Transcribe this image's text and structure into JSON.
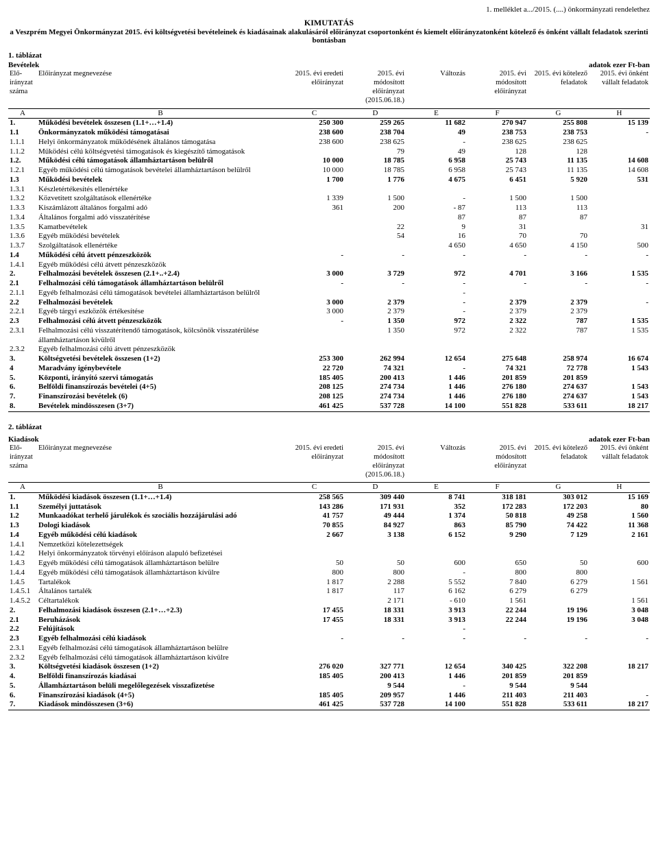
{
  "header": {
    "top_right": "1. melléklet a.../2015. (....) önkormányzati rendelethez",
    "title": "KIMUTATÁS",
    "subtitle": "a Veszprém Megyei Önkormányzat 2015. évi költségvetési bevételeinek és kiadásainak alakulásáról előirányzat csoportonként és kiemelt előirányzatonként kötelező és önként vállalt feladatok szerinti bontásban"
  },
  "table1": {
    "label": "1. táblázat",
    "section_left": "Bevételek",
    "section_right": "adatok ezer Ft-ban",
    "columns": {
      "a": "Elő-irányzat száma",
      "b": "Előirányzat megnevezése",
      "c": "2015. évi eredeti előirányzat",
      "d": "2015. évi módosított előirányzat (2015.06.18.)",
      "e": "Változás",
      "f": "2015. évi módosított előirányzat",
      "g": "2015. évi kötelező feladatok",
      "h": "2015. évi önként vállalt feladatok"
    },
    "letters": [
      "A",
      "B",
      "C",
      "D",
      "E",
      "F",
      "G",
      "H"
    ],
    "rows": [
      {
        "a": "1.",
        "b": "Működési bevételek összesen (1.1+…+1.4)",
        "c": "250 300",
        "d": "259 265",
        "e": "11 682",
        "f": "270 947",
        "g": "255 808",
        "h": "15 139",
        "bold": true
      },
      {
        "a": "1.1",
        "b": "Önkormányzatok működési támogatásai",
        "c": "238 600",
        "d": "238 704",
        "e": "49",
        "f": "238 753",
        "g": "238 753",
        "h": "-",
        "bold": true
      },
      {
        "a": "1.1.1",
        "b": "Helyi önkormányzatok működésének általános támogatása",
        "c": "238 600",
        "d": "238 625",
        "e": "-",
        "f": "238 625",
        "g": "238 625",
        "h": ""
      },
      {
        "a": "1.1.2",
        "b": "Működési célú költségvetési támogatások és kiegészítő támogatások",
        "c": "",
        "d": "79",
        "e": "49",
        "f": "128",
        "g": "128",
        "h": ""
      },
      {
        "a": "1.2.",
        "b": "Működési célú támogatások államháztartáson belülről",
        "c": "10 000",
        "d": "18 785",
        "e": "6 958",
        "f": "25 743",
        "g": "11 135",
        "h": "14 608",
        "bold": true
      },
      {
        "a": "1.2.1",
        "b": "Egyéb működési célú támogatások bevételei államháztartáson belülről",
        "c": "10 000",
        "d": "18 785",
        "e": "6 958",
        "f": "25 743",
        "g": "11 135",
        "h": "14 608"
      },
      {
        "a": "1.3",
        "b": "Működési bevételek",
        "c": "1 700",
        "d": "1 776",
        "e": "4 675",
        "f": "6 451",
        "g": "5 920",
        "h": "531",
        "bold": true
      },
      {
        "a": "1.3.1",
        "b": "Készletértékesítés ellenértéke",
        "c": "",
        "d": "",
        "e": "",
        "f": "",
        "g": "",
        "h": ""
      },
      {
        "a": "1.3.2",
        "b": "Közvetített szolgáltatások ellenértéke",
        "c": "1 339",
        "d": "1 500",
        "e": "-",
        "f": "1 500",
        "g": "1 500",
        "h": ""
      },
      {
        "a": "1.3.3",
        "b": "Kiszámlázott általános forgalmi adó",
        "c": "361",
        "d": "200",
        "e": "-          87",
        "f": "113",
        "g": "113",
        "h": ""
      },
      {
        "a": "1.3.4",
        "b": "Általános forgalmi adó visszatérítése",
        "c": "",
        "d": "",
        "e": "87",
        "f": "87",
        "g": "87",
        "h": ""
      },
      {
        "a": "1.3.5",
        "b": "Kamatbevételek",
        "c": "",
        "d": "22",
        "e": "9",
        "f": "31",
        "g": "",
        "h": "31"
      },
      {
        "a": "1.3.6",
        "b": "Egyéb működési bevételek",
        "c": "",
        "d": "54",
        "e": "16",
        "f": "70",
        "g": "70",
        "h": ""
      },
      {
        "a": "1.3.7",
        "b": "Szolgáltatások ellenértéke",
        "c": "",
        "d": "",
        "e": "4 650",
        "f": "4 650",
        "g": "4 150",
        "h": "500"
      },
      {
        "a": "1.4",
        "b": "Működési célú átvett pénzeszközök",
        "c": "-",
        "d": "-",
        "e": "-",
        "f": "-",
        "g": "-",
        "h": "-",
        "bold": true
      },
      {
        "a": "1.4.1",
        "b": "Egyéb működési célú átvett pénzeszközök",
        "c": "",
        "d": "",
        "e": "",
        "f": "",
        "g": "",
        "h": ""
      },
      {
        "a": "2.",
        "b": "Felhalmozási bevételek összesen (2.1+..+2.4)",
        "c": "3 000",
        "d": "3 729",
        "e": "972",
        "f": "4 701",
        "g": "3 166",
        "h": "1 535",
        "bold": true
      },
      {
        "a": "2.1",
        "b": "Felhalmozási célú támogatások államháztartáson belülről",
        "c": "-",
        "d": "-",
        "e": "-",
        "f": "-",
        "g": "-",
        "h": "-",
        "bold": true
      },
      {
        "a": "2.1.1",
        "b": "Egyéb felhalmozási célú támogatások bevételei államháztartáson belülről",
        "c": "",
        "d": "",
        "e": "-",
        "f": "",
        "g": "",
        "h": ""
      },
      {
        "a": "2.2",
        "b": "Felhalmozási bevételek",
        "c": "3 000",
        "d": "2 379",
        "e": "-",
        "f": "2 379",
        "g": "2 379",
        "h": "-",
        "bold": true
      },
      {
        "a": "2.2.1",
        "b": "Egyéb tárgyi eszközök értékesítése",
        "c": "3 000",
        "d": "2 379",
        "e": "-",
        "f": "2 379",
        "g": "2 379",
        "h": ""
      },
      {
        "a": "2.3",
        "b": "Felhalmozási célú átvett pénzeszközök",
        "c": "-",
        "d": "1 350",
        "e": "972",
        "f": "2 322",
        "g": "787",
        "h": "1 535",
        "bold": true
      },
      {
        "a": "2.3.1",
        "b": "Felhalmozási célú visszatérítendő támogatások, kölcsönök visszatérülése államháztartáson kívülről",
        "c": "",
        "d": "1 350",
        "e": "972",
        "f": "2 322",
        "g": "787",
        "h": "1 535"
      },
      {
        "a": "2.3.2",
        "b": "Egyéb felhalmozási célú átvett pénzeszközök",
        "c": "",
        "d": "",
        "e": "",
        "f": "",
        "g": "",
        "h": ""
      },
      {
        "a": "3.",
        "b": "Költségvetési bevételek összesen (1+2)",
        "c": "253 300",
        "d": "262 994",
        "e": "12 654",
        "f": "275 648",
        "g": "258 974",
        "h": "16 674",
        "bold": true
      },
      {
        "a": "4",
        "b": "Maradvány igénybevétele",
        "c": "22 720",
        "d": "74 321",
        "e": "-",
        "f": "74 321",
        "g": "72 778",
        "h": "1 543",
        "bold": true
      },
      {
        "a": "5.",
        "b": "Központi, irányító szervi támogatás",
        "c": "185 405",
        "d": "200 413",
        "e": "1 446",
        "f": "201 859",
        "g": "201 859",
        "h": "",
        "bold": true
      },
      {
        "a": "6.",
        "b": "Belföldi finanszírozás bevételei (4+5)",
        "c": "208 125",
        "d": "274 734",
        "e": "1 446",
        "f": "276 180",
        "g": "274 637",
        "h": "1 543",
        "bold": true
      },
      {
        "a": "7.",
        "b": "Finanszírozási bevételek (6)",
        "c": "208 125",
        "d": "274 734",
        "e": "1 446",
        "f": "276 180",
        "g": "274 637",
        "h": "1 543",
        "bold": true
      },
      {
        "a": "8.",
        "b": "Bevételek mindösszesen (3+7)",
        "c": "461 425",
        "d": "537 728",
        "e": "14 100",
        "f": "551 828",
        "g": "533 611",
        "h": "18 217",
        "bold": true,
        "last": true
      }
    ]
  },
  "table2": {
    "label": "2. táblázat",
    "section_left": "Kiadások",
    "section_right": "adatok ezer Ft-ban",
    "columns": {
      "a": "Elő-irányzat száma",
      "b": "Előirányzat megnevezése",
      "c": "2015. évi eredeti előirányzat",
      "d": "2015. évi módosított előirányzat (2015.06.18.)",
      "e": "Változás",
      "f": "2015. évi módosított előirányzat",
      "g": "2015. évi kötelező feladatok",
      "h": "2015. évi önként vállalt feladatok"
    },
    "letters": [
      "A",
      "B",
      "C",
      "D",
      "E",
      "F",
      "G",
      "H"
    ],
    "rows": [
      {
        "a": "1.",
        "b": "Működési kiadások összesen (1.1+…+1.4)",
        "c": "258 565",
        "d": "309 440",
        "e": "8 741",
        "f": "318 181",
        "g": "303 012",
        "h": "15 169",
        "bold": true
      },
      {
        "a": "1.1",
        "b": "Személyi juttatások",
        "c": "143 286",
        "d": "171 931",
        "e": "352",
        "f": "172 283",
        "g": "172 203",
        "h": "80",
        "bold": true
      },
      {
        "a": "1.2",
        "b": "Munkaadókat terhelő járulékok és szociális hozzájárulási adó",
        "c": "41 757",
        "d": "49 444",
        "e": "1 374",
        "f": "50 818",
        "g": "49 258",
        "h": "1 560",
        "bold": true
      },
      {
        "a": "1.3",
        "b": "Dologi kiadások",
        "c": "70 855",
        "d": "84 927",
        "e": "863",
        "f": "85 790",
        "g": "74 422",
        "h": "11 368",
        "bold": true
      },
      {
        "a": "1.4",
        "b": "Egyéb működési célú kiadások",
        "c": "2 667",
        "d": "3 138",
        "e": "6 152",
        "f": "9 290",
        "g": "7 129",
        "h": "2 161",
        "bold": true
      },
      {
        "a": "1.4.1",
        "b": "Nemzetközi kötelezettségek",
        "c": "",
        "d": "",
        "e": "",
        "f": "",
        "g": "",
        "h": ""
      },
      {
        "a": "1.4.2",
        "b": "Helyi önkormányzatok törvényi előíráson alapuló befizetései",
        "c": "",
        "d": "",
        "e": "",
        "f": "",
        "g": "",
        "h": ""
      },
      {
        "a": "1.4.3",
        "b": "Egyéb működési célú támogatások államháztartáson belülre",
        "c": "50",
        "d": "50",
        "e": "600",
        "f": "650",
        "g": "50",
        "h": "600"
      },
      {
        "a": "1.4.4",
        "b": "Egyéb működési célú támogatások államháztartáson kívülre",
        "c": "800",
        "d": "800",
        "e": "-",
        "f": "800",
        "g": "800",
        "h": ""
      },
      {
        "a": "1.4.5",
        "b": "Tartalékok",
        "c": "1 817",
        "d": "2 288",
        "e": "5 552",
        "f": "7 840",
        "g": "6 279",
        "h": "1 561"
      },
      {
        "a": "1.4.5.1",
        "b": "Általános tartalék",
        "c": "1 817",
        "d": "117",
        "e": "6 162",
        "f": "6 279",
        "g": "6 279",
        "h": ""
      },
      {
        "a": "1.4.5.2",
        "b": "Céltartalékok",
        "c": "",
        "d": "2 171",
        "e": "-        610",
        "f": "1 561",
        "g": "",
        "h": "1 561"
      },
      {
        "a": "2.",
        "b": "Felhalmozási kiadások összesen (2.1+…+2.3)",
        "c": "17 455",
        "d": "18 331",
        "e": "3 913",
        "f": "22 244",
        "g": "19 196",
        "h": "3 048",
        "bold": true
      },
      {
        "a": "2.1",
        "b": "Beruházások",
        "c": "17 455",
        "d": "18 331",
        "e": "3 913",
        "f": "22 244",
        "g": "19 196",
        "h": "3 048",
        "bold": true
      },
      {
        "a": "2.2",
        "b": "Felújítások",
        "c": "",
        "d": "",
        "e": "-",
        "f": "",
        "g": "",
        "h": "",
        "bold": true
      },
      {
        "a": "2.3",
        "b": "Egyéb felhalmozási célú kiadások",
        "c": "-",
        "d": "-",
        "e": "-",
        "f": "-",
        "g": "-",
        "h": "-",
        "bold": true
      },
      {
        "a": "2.3.1",
        "b": "Egyéb felhalmozási célú támogatások államháztartáson belülre",
        "c": "",
        "d": "",
        "e": "",
        "f": "",
        "g": "",
        "h": ""
      },
      {
        "a": "2.3.2",
        "b": "Egyéb felhalmozási célú támogatások államháztartáson kívülre",
        "c": "",
        "d": "",
        "e": "",
        "f": "",
        "g": "",
        "h": ""
      },
      {
        "a": "3.",
        "b": "Költségvetési kiadások összesen (1+2)",
        "c": "276 020",
        "d": "327 771",
        "e": "12 654",
        "f": "340 425",
        "g": "322 208",
        "h": "18 217",
        "bold": true
      },
      {
        "a": "4.",
        "b": "Belföldi finanszírozás kiadásai",
        "c": "185 405",
        "d": "200 413",
        "e": "1 446",
        "f": "201 859",
        "g": "201 859",
        "h": "",
        "bold": true
      },
      {
        "a": "5.",
        "b": "Államháztartáson belüli megelőlegezések visszafizetése",
        "c": "",
        "d": "9 544",
        "e": "-",
        "f": "9 544",
        "g": "9 544",
        "h": "",
        "bold": true
      },
      {
        "a": "6.",
        "b": "Finanszírozási kiadások (4+5)",
        "c": "185 405",
        "d": "209 957",
        "e": "1 446",
        "f": "211 403",
        "g": "211 403",
        "h": "-",
        "bold": true
      },
      {
        "a": "7.",
        "b": "Kiadások mindösszesen (3+6)",
        "c": "461 425",
        "d": "537 728",
        "e": "14 100",
        "f": "551 828",
        "g": "533 611",
        "h": "18 217",
        "bold": true,
        "last": true
      }
    ]
  }
}
